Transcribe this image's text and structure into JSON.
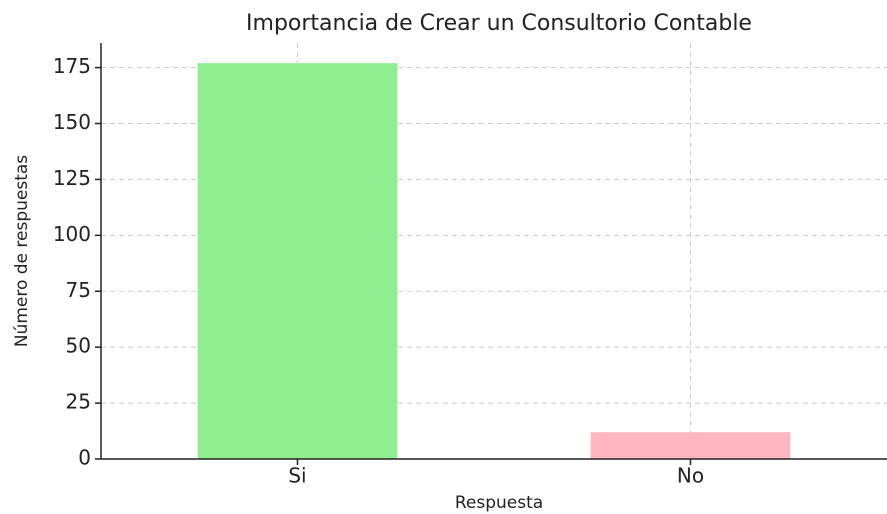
{
  "chart_data": {
    "type": "bar",
    "title": "Importancia de Crear un Consultorio Contable",
    "x_label": "Respuesta",
    "y_label": "Número de respuestas",
    "categories": [
      "Si",
      "No"
    ],
    "series": [
      {
        "name": "Número de respuestas",
        "colors": [
          "#90ee90",
          "#ffb6c1"
        ],
        "values": [
          177,
          12
        ]
      }
    ],
    "ylim": [
      0,
      186
    ],
    "yticks": [
      0,
      25,
      50,
      75,
      100,
      125,
      150,
      175
    ],
    "grid": true
  }
}
